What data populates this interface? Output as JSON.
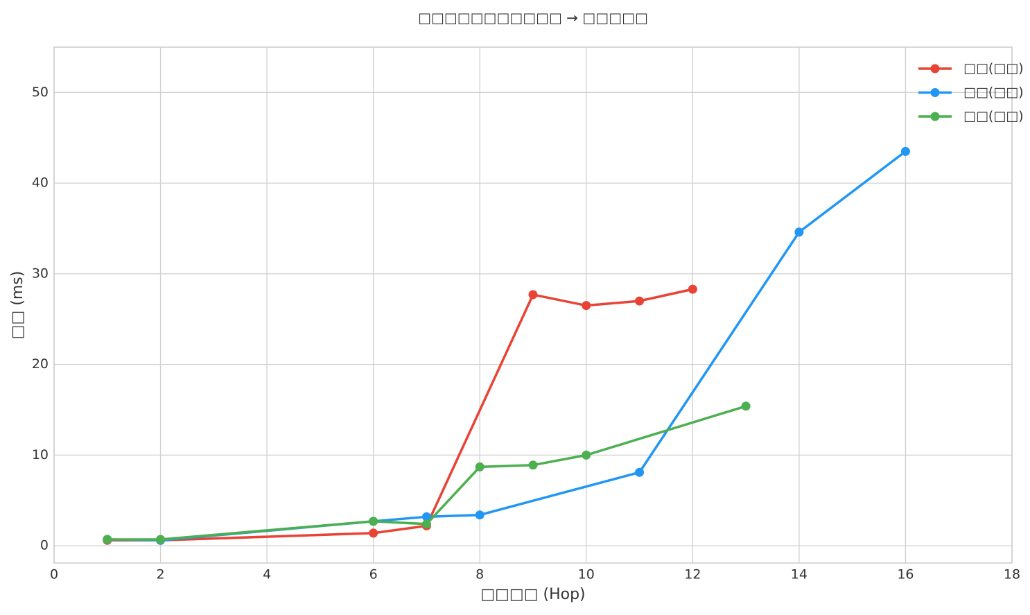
{
  "chart_data": {
    "type": "line",
    "title": "□□□□□□□□□□□  →  □□□□□",
    "x_label": "□□□□ (Hop)",
    "y_label": "□□ (ms)",
    "series": [
      {
        "name": "□□(□□)",
        "color": "#e94335",
        "x": [
          1,
          2,
          6,
          7,
          9,
          10,
          11,
          12
        ],
        "values": [
          0.6,
          0.6,
          1.4,
          2.2,
          27.7,
          26.5,
          27.0,
          28.3
        ]
      },
      {
        "name": "□□(□□)",
        "color": "#2196f3",
        "x": [
          1,
          2,
          6,
          7,
          8,
          11,
          14,
          16
        ],
        "values": [
          0.7,
          0.6,
          2.7,
          3.2,
          3.4,
          8.1,
          34.6,
          43.5
        ]
      },
      {
        "name": "□□(□□)",
        "color": "#4caf50",
        "x": [
          1,
          2,
          6,
          7,
          8,
          9,
          10,
          13
        ],
        "values": [
          0.7,
          0.7,
          2.7,
          2.4,
          8.7,
          8.9,
          10.0,
          15.4
        ]
      }
    ],
    "xlim": [
      0,
      18
    ],
    "xticks": [
      0,
      2,
      4,
      6,
      8,
      10,
      12,
      14,
      16,
      18
    ],
    "ylim": [
      -1.9,
      55
    ],
    "yticks": [
      0,
      10,
      20,
      30,
      40,
      50
    ],
    "grid": true,
    "legend": "upper right"
  }
}
